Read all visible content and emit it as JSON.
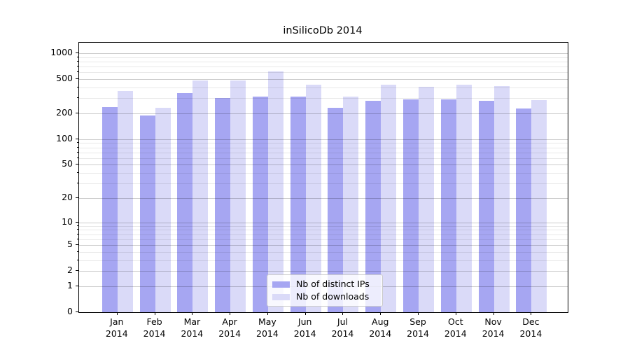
{
  "title": "inSilicoDb 2014",
  "chart_data": {
    "type": "bar",
    "title": "inSilicoDb 2014",
    "categories": [
      "Jan",
      "Feb",
      "Mar",
      "Apr",
      "May",
      "Jun",
      "Jul",
      "Aug",
      "Sep",
      "Oct",
      "Nov",
      "Dec"
    ],
    "category_year": "2014",
    "series": [
      {
        "name": "Nb of distinct IPs",
        "color": "#a6a6f2",
        "values": [
          236,
          190,
          344,
          301,
          315,
          316,
          231,
          283,
          292,
          293,
          281,
          228
        ]
      },
      {
        "name": "Nb of downloads",
        "color": "#dadaf8",
        "values": [
          362,
          234,
          484,
          481,
          620,
          430,
          316,
          432,
          410,
          431,
          413,
          287
        ]
      }
    ],
    "xlabel": "",
    "ylabel": "",
    "y_scale": "log10(1+v)",
    "y_tick_values": [
      0,
      1,
      2,
      5,
      10,
      20,
      50,
      100,
      200,
      500,
      1000
    ],
    "y_tick_labels": [
      "0",
      "1",
      "2",
      "5",
      "10",
      "20",
      "50",
      "100",
      "200",
      "500",
      "1000"
    ],
    "y_minor_gridlines": [
      3,
      4,
      6,
      7,
      8,
      9,
      30,
      40,
      60,
      70,
      80,
      90,
      300,
      400,
      600,
      700,
      800,
      900
    ],
    "ylim_top": 1326,
    "grid": true,
    "legend_position": "lower center"
  },
  "legend": {
    "items": [
      {
        "label": "Nb of distinct IPs"
      },
      {
        "label": "Nb of downloads"
      }
    ]
  }
}
